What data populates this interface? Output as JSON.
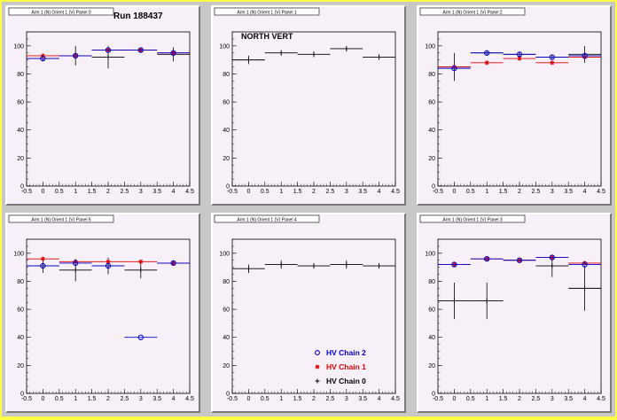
{
  "run_label": "Run 188437",
  "side_label": "NORTH VERT",
  "colors": {
    "chain2": "#0000cc",
    "chain1": "#dd0000",
    "chain0": "#000000",
    "pad_bg": "#f8f0f8",
    "frame_bg": "#c8c8c8"
  },
  "legend": [
    {
      "label": "HV Chain 2",
      "marker": "open-circle",
      "color": "#0000cc"
    },
    {
      "label": "HV Chain 1",
      "marker": "star",
      "color": "#dd0000"
    },
    {
      "label": "HV Chain 0",
      "marker": "plus",
      "color": "#000000"
    }
  ],
  "chart_data": [
    {
      "type": "scatter",
      "title": "Arm 1 (N) Orient 1 (V) Panel 0",
      "xlim": [
        -0.5,
        4.5
      ],
      "ylim": [
        0,
        110
      ],
      "xticks": [
        "-0.5",
        "0",
        "0.5",
        "1",
        "1.5",
        "2",
        "2.5",
        "3",
        "3.5",
        "4",
        "4.5"
      ],
      "yticks": [
        "0",
        "20",
        "40",
        "60",
        "80",
        "100"
      ],
      "series": [
        {
          "name": "HV Chain 2",
          "x": [
            0,
            1,
            2,
            3,
            4
          ],
          "y": [
            91,
            93,
            97,
            97,
            95
          ]
        },
        {
          "name": "HV Chain 1",
          "x": [
            0,
            1,
            2,
            3,
            4
          ],
          "y": [
            93,
            93,
            97,
            97,
            95
          ]
        },
        {
          "name": "HV Chain 0",
          "x": [
            0,
            1,
            2,
            3,
            4
          ],
          "y": [
            91,
            93,
            92,
            97,
            94
          ],
          "yerr": [
            0,
            7,
            8,
            0,
            5
          ]
        }
      ]
    },
    {
      "type": "scatter",
      "title": "Arm 1 (N) Orient 1 (V) Panel 1",
      "xlim": [
        -0.5,
        4.5
      ],
      "ylim": [
        0,
        110
      ],
      "xticks": [
        "-0.5",
        "0",
        "0.5",
        "1",
        "1.5",
        "2",
        "2.5",
        "3",
        "3.5",
        "4",
        "4.5"
      ],
      "yticks": [
        "0",
        "20",
        "40",
        "60",
        "80",
        "100"
      ],
      "series": [
        {
          "name": "HV Chain 0",
          "x": [
            0,
            1,
            2,
            3,
            4
          ],
          "y": [
            90,
            95,
            94,
            98,
            92
          ],
          "yerr": [
            3,
            2,
            2,
            2,
            2
          ]
        }
      ]
    },
    {
      "type": "scatter",
      "title": "Arm 1 (N) Orient 1 (V) Panel 2",
      "xlim": [
        -0.5,
        4.5
      ],
      "ylim": [
        0,
        110
      ],
      "xticks": [
        "-0.5",
        "0",
        "0.5",
        "1",
        "1.5",
        "2",
        "2.5",
        "3",
        "3.5",
        "4",
        "4.5"
      ],
      "yticks": [
        "0",
        "20",
        "40",
        "60",
        "80",
        "100"
      ],
      "series": [
        {
          "name": "HV Chain 2",
          "x": [
            0,
            1,
            2,
            3,
            4
          ],
          "y": [
            84,
            95,
            94,
            92,
            93
          ]
        },
        {
          "name": "HV Chain 1",
          "x": [
            0,
            1,
            2,
            3,
            4
          ],
          "y": [
            85,
            88,
            91,
            88,
            92
          ]
        },
        {
          "name": "HV Chain 0",
          "x": [
            0,
            1,
            2,
            3,
            4
          ],
          "y": [
            85,
            95,
            94,
            92,
            94
          ],
          "yerr": [
            10,
            0,
            0,
            0,
            6
          ]
        }
      ]
    },
    {
      "type": "scatter",
      "title": "Arm 1 (N) Orient 1 (V) Panel 5",
      "xlim": [
        -0.5,
        4.5
      ],
      "ylim": [
        0,
        110
      ],
      "xticks": [
        "-0.5",
        "0",
        "0.5",
        "1",
        "1.5",
        "2",
        "2.5",
        "3",
        "3.5",
        "4",
        "4.5"
      ],
      "yticks": [
        "0",
        "20",
        "40",
        "60",
        "80",
        "100"
      ],
      "series": [
        {
          "name": "HV Chain 2",
          "x": [
            0,
            1,
            2,
            3,
            4
          ],
          "y": [
            91,
            93,
            91,
            40,
            93
          ]
        },
        {
          "name": "HV Chain 1",
          "x": [
            0,
            1,
            2,
            3,
            4
          ],
          "y": [
            96,
            94,
            94,
            94,
            93
          ]
        },
        {
          "name": "HV Chain 0",
          "x": [
            0,
            1,
            2,
            3,
            4
          ],
          "y": [
            91,
            88,
            91,
            88,
            93
          ],
          "yerr": [
            5,
            8,
            6,
            6,
            2
          ]
        }
      ]
    },
    {
      "type": "scatter",
      "title": "Arm 1 (N) Orient 1 (V) Panel 4",
      "xlim": [
        -0.5,
        4.5
      ],
      "ylim": [
        0,
        110
      ],
      "xticks": [
        "-0.5",
        "0",
        "0.5",
        "1",
        "1.5",
        "2",
        "2.5",
        "3",
        "3.5",
        "4",
        "4.5"
      ],
      "yticks": [
        "0",
        "20",
        "40",
        "60",
        "80",
        "100"
      ],
      "series": [
        {
          "name": "HV Chain 0",
          "x": [
            0,
            1,
            2,
            3,
            4
          ],
          "y": [
            89,
            92,
            91,
            92,
            91
          ],
          "yerr": [
            3,
            3,
            2,
            3,
            2
          ]
        }
      ]
    },
    {
      "type": "scatter",
      "title": "Arm 1 (N) Orient 1 (V) Panel 3",
      "xlim": [
        -0.5,
        4.5
      ],
      "ylim": [
        0,
        110
      ],
      "xticks": [
        "-0.5",
        "0",
        "0.5",
        "1",
        "1.5",
        "2",
        "2.5",
        "3",
        "3.5",
        "4",
        "4.5"
      ],
      "yticks": [
        "0",
        "20",
        "40",
        "60",
        "80",
        "100"
      ],
      "series": [
        {
          "name": "HV Chain 2",
          "x": [
            0,
            1,
            2,
            3,
            4
          ],
          "y": [
            92,
            96,
            95,
            97,
            92
          ]
        },
        {
          "name": "HV Chain 1",
          "x": [
            0,
            1,
            2,
            3,
            4
          ],
          "y": [
            92,
            96,
            95,
            97,
            93
          ]
        },
        {
          "name": "HV Chain 0",
          "x": [
            0,
            1,
            2,
            3,
            4
          ],
          "y": [
            66,
            66,
            95,
            91,
            75
          ],
          "yerr": [
            13,
            13,
            2,
            8,
            16
          ]
        }
      ]
    }
  ]
}
